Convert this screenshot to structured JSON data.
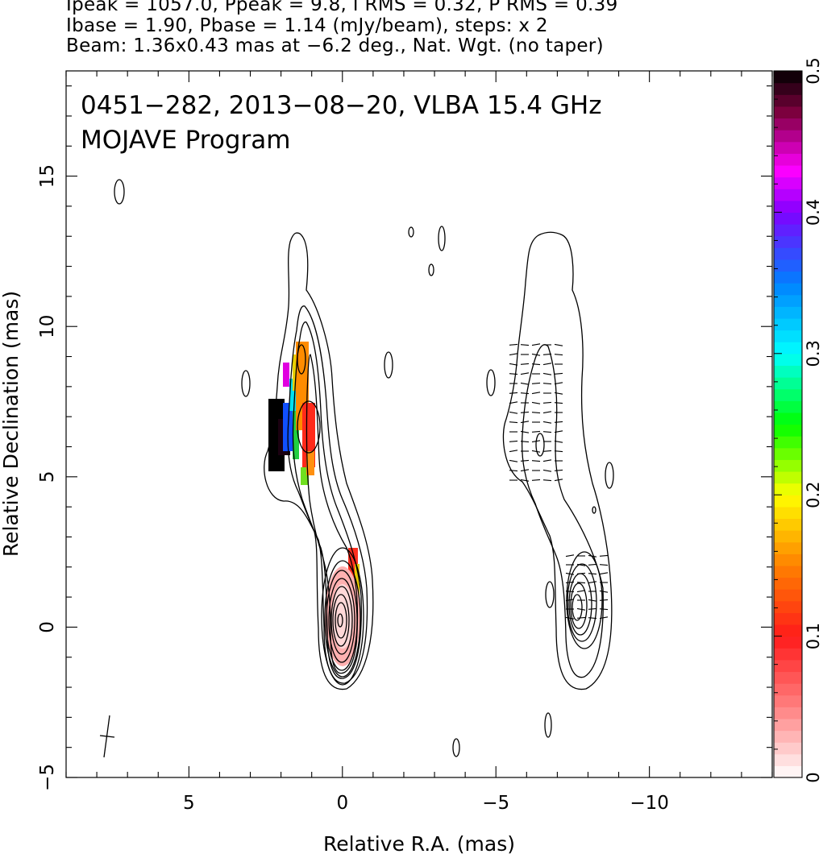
{
  "header": {
    "line1": "Ipeak = 1057.0, Ppeak = 9.8, I RMS = 0.32, P RMS = 0.39",
    "line2": "Ibase = 1.90, Pbase = 1.14 (mJy/beam), steps: x 2",
    "line3": "Beam: 1.36x0.43 mas at −6.2 deg., Nat. Wgt. (no taper)"
  },
  "chart_data": {
    "type": "heatmap",
    "title": "0451−282, 2013−08−20, VLBA 15.4 GHz",
    "subtitle": "MOJAVE Program",
    "xlabel": "Relative R.A. (mas)",
    "ylabel": "Relative Declination (mas)",
    "xlim": [
      9,
      -14
    ],
    "ylim": [
      -5,
      18.5
    ],
    "x_ticks": [
      5,
      0,
      -5,
      -10
    ],
    "x_tick_labels": [
      "5",
      "0",
      "−5",
      "−10"
    ],
    "y_ticks": [
      -5,
      0,
      5,
      10,
      15
    ],
    "y_tick_labels": [
      "−5",
      "0",
      "5",
      "10",
      "15"
    ],
    "colorbar": {
      "range": [
        0,
        0.5
      ],
      "ticks": [
        0,
        0.1,
        0.2,
        0.3,
        0.4,
        0.5
      ],
      "tick_labels": [
        "0",
        "0.1",
        "0.2",
        "0.3",
        "0.4",
        "0.5"
      ],
      "stops": [
        {
          "v": 0.0,
          "color": "#ffffff"
        },
        {
          "v": 0.05,
          "color": "#ff8080"
        },
        {
          "v": 0.1,
          "color": "#ff1a1a"
        },
        {
          "v": 0.15,
          "color": "#ff8000"
        },
        {
          "v": 0.2,
          "color": "#ffff00"
        },
        {
          "v": 0.25,
          "color": "#00ff00"
        },
        {
          "v": 0.3,
          "color": "#00ffff"
        },
        {
          "v": 0.35,
          "color": "#0080ff"
        },
        {
          "v": 0.4,
          "color": "#8000ff"
        },
        {
          "v": 0.43,
          "color": "#ff00ff"
        },
        {
          "v": 0.47,
          "color": "#800040"
        },
        {
          "v": 0.5,
          "color": "#000000"
        }
      ]
    },
    "panels": [
      "total intensity with fractional polarization",
      "total intensity with EVPA ticks"
    ],
    "core_offset_mas": 0,
    "right_panel_shift_mas": -7.8
  }
}
